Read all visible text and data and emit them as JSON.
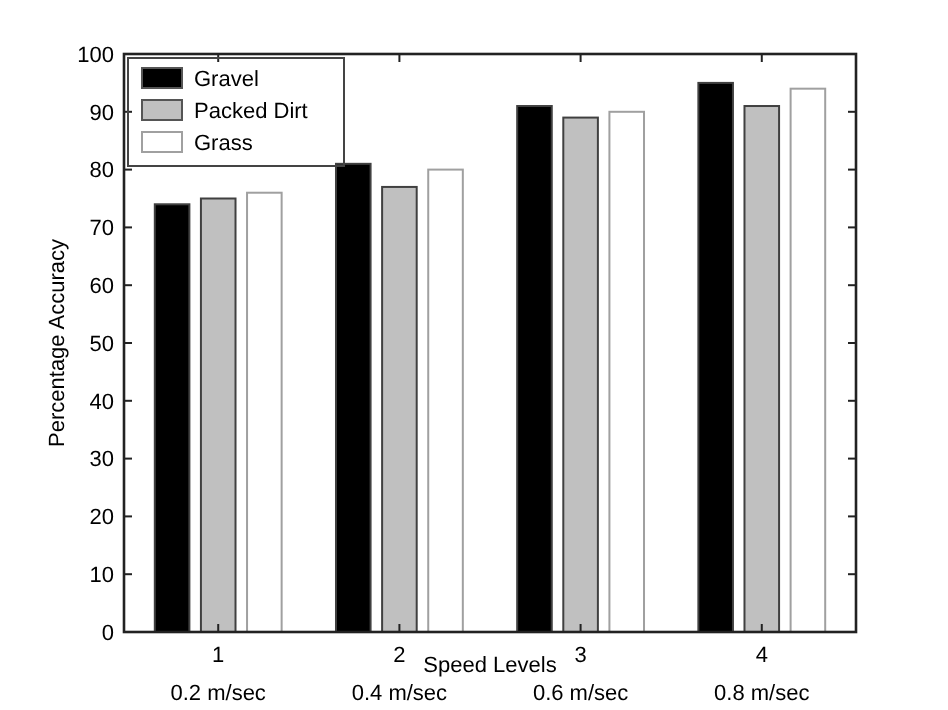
{
  "chart_data": {
    "type": "bar",
    "xlabel": "Speed Levels",
    "ylabel": "Percentage Accuracy",
    "categories": [
      "1",
      "2",
      "3",
      "4"
    ],
    "series": [
      {
        "name": "Gravel",
        "color": "#000000",
        "values": [
          74,
          81,
          91,
          95
        ]
      },
      {
        "name": "Packed Dirt",
        "color": "#c0c0c0",
        "values": [
          75,
          77,
          89,
          91
        ]
      },
      {
        "name": "Grass",
        "color": "#ffffff",
        "values": [
          76,
          80,
          90,
          94
        ]
      }
    ],
    "annotations": [
      "0.2 m/sec",
      "0.4 m/sec",
      "0.6 m/sec",
      "0.8 m/sec"
    ],
    "ylim": [
      0,
      100
    ],
    "yticks": [
      0,
      10,
      20,
      30,
      40,
      50,
      60,
      70,
      80,
      90,
      100
    ],
    "grid": false,
    "legend": "top left"
  }
}
